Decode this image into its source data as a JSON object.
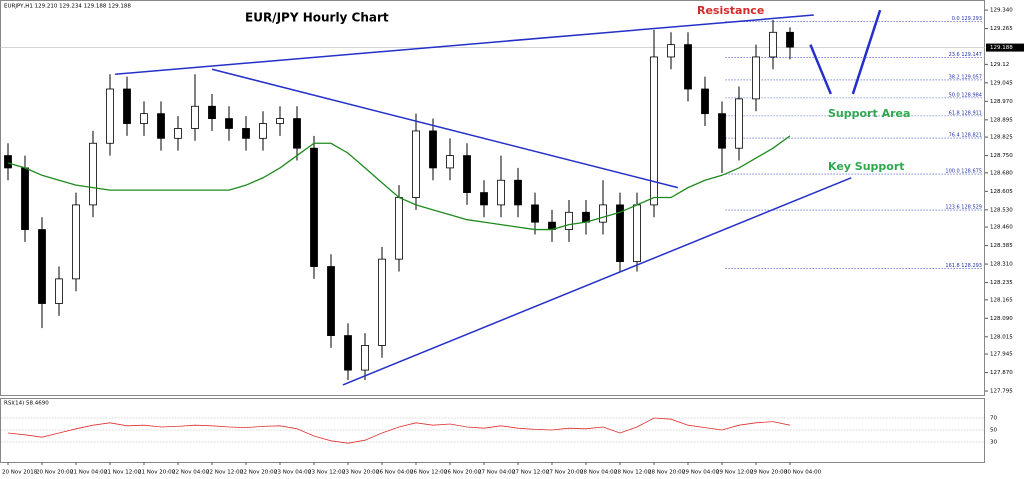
{
  "chart_data": {
    "type": "candlestick",
    "title": "EUR/JPY Hourly Chart",
    "info": "EURJPY,H1 129.210 129.234 129.188 129.188",
    "categories": [
      "20 Nov 2018",
      null,
      "20 Nov 20:00",
      null,
      "21 Nov 04:00",
      null,
      "21 Nov 12:00",
      null,
      "21 Nov 20:00",
      null,
      "22 Nov 04:00",
      null,
      "22 Nov 12:00",
      null,
      "22 Nov 20:00",
      null,
      "23 Nov 04:00",
      null,
      "23 Nov 12:00",
      null,
      "23 Nov 20:00",
      null,
      "26 Nov 04:00",
      null,
      "26 Nov 12:00",
      null,
      "26 Nov 20:00",
      null,
      "27 Nov 04:00",
      null,
      "27 Nov 12:00",
      null,
      "27 Nov 20:00",
      null,
      "28 Nov 04:00",
      null,
      "28 Nov 12:00",
      null,
      "28 Nov 20:00",
      null,
      "29 Nov 04:00",
      null,
      "29 Nov 12:00",
      null,
      "29 Nov 20:00",
      null,
      "30 Nov 04:00"
    ],
    "open": [
      128.75,
      128.7,
      128.45,
      128.15,
      128.25,
      128.55,
      128.8,
      129.02,
      128.88,
      128.92,
      128.82,
      128.86,
      128.95,
      128.9,
      128.86,
      128.82,
      128.88,
      128.9,
      128.78,
      128.3,
      128.02,
      127.88,
      127.98,
      128.33,
      128.58,
      128.85,
      128.7,
      128.75,
      128.6,
      128.55,
      128.65,
      128.55,
      128.48,
      128.45,
      128.52,
      128.48,
      128.55,
      128.32,
      128.55,
      129.15,
      129.2,
      129.02,
      128.92,
      128.78,
      128.98,
      129.15,
      129.25
    ],
    "high": [
      128.8,
      128.75,
      128.5,
      128.3,
      128.6,
      128.85,
      129.08,
      129.07,
      128.97,
      128.97,
      128.91,
      129.08,
      129.0,
      128.95,
      128.91,
      128.93,
      128.95,
      128.95,
      128.83,
      128.35,
      128.07,
      128.03,
      128.38,
      128.63,
      128.92,
      128.9,
      128.82,
      128.8,
      128.65,
      128.75,
      128.7,
      128.6,
      128.53,
      128.57,
      128.57,
      128.65,
      128.6,
      128.6,
      129.26,
      129.25,
      129.25,
      129.07,
      128.97,
      129.03,
      129.2,
      129.3,
      129.27
    ],
    "low": [
      128.65,
      128.4,
      128.05,
      128.1,
      128.2,
      128.5,
      128.75,
      128.83,
      128.83,
      128.77,
      128.77,
      128.81,
      128.85,
      128.81,
      128.77,
      128.77,
      128.83,
      128.73,
      128.25,
      127.97,
      127.84,
      127.84,
      127.93,
      128.28,
      128.53,
      128.65,
      128.65,
      128.55,
      128.5,
      128.5,
      128.5,
      128.43,
      128.4,
      128.4,
      128.43,
      128.43,
      128.28,
      128.28,
      128.5,
      129.1,
      128.97,
      128.87,
      128.68,
      128.73,
      128.93,
      129.1,
      129.14
    ],
    "close": [
      128.7,
      128.45,
      128.15,
      128.25,
      128.55,
      128.8,
      129.02,
      128.88,
      128.92,
      128.82,
      128.86,
      128.95,
      128.9,
      128.86,
      128.82,
      128.88,
      128.9,
      128.78,
      128.3,
      128.02,
      127.88,
      127.98,
      128.33,
      128.58,
      128.85,
      128.7,
      128.75,
      128.6,
      128.55,
      128.65,
      128.55,
      128.48,
      128.45,
      128.52,
      128.48,
      128.55,
      128.32,
      128.55,
      129.15,
      129.2,
      129.02,
      128.92,
      128.78,
      128.98,
      129.15,
      129.25,
      129.19
    ],
    "moving_average": {
      "color": "#1e8a1e",
      "values": [
        128.72,
        128.7,
        128.67,
        128.65,
        128.63,
        128.62,
        128.61,
        128.61,
        128.61,
        128.61,
        128.61,
        128.61,
        128.61,
        128.61,
        128.63,
        128.66,
        128.7,
        128.75,
        128.8,
        128.8,
        128.76,
        128.7,
        128.64,
        128.58,
        128.55,
        128.53,
        128.51,
        128.49,
        128.48,
        128.47,
        128.46,
        128.45,
        128.45,
        128.47,
        128.48,
        128.5,
        128.52,
        128.55,
        128.58,
        128.58,
        128.62,
        128.65,
        128.67,
        128.7,
        128.74,
        128.78,
        128.83
      ]
    },
    "ylim": [
      127.779,
      129.381
    ],
    "yticks": [
      {
        "value": 129.34,
        "label": "129.340"
      },
      129.265,
      129.12,
      129.045,
      {
        "value": 128.97,
        "label": "128.970"
      },
      128.895,
      128.825,
      {
        "value": 128.75,
        "label": "128.750"
      },
      {
        "value": 128.68,
        "label": "128.680"
      },
      128.605,
      {
        "value": 128.53,
        "label": "128.530"
      },
      {
        "value": 128.46,
        "label": "128.460"
      },
      128.385,
      {
        "value": 128.31,
        "label": "128.310"
      },
      128.235,
      128.165,
      {
        "value": 128.09,
        "label": "128.090"
      },
      128.015,
      127.945,
      {
        "value": 127.87,
        "label": "127.870"
      },
      127.795
    ],
    "current_price": 129.188,
    "trendlines": [
      {
        "color": "#2430c8",
        "points": [
          [
            6.3,
            129.08
          ],
          [
            47.4,
            129.32
          ]
        ]
      },
      {
        "color": "#2430c8",
        "points": [
          [
            12.0,
            129.1
          ],
          [
            39.4,
            128.62
          ]
        ]
      },
      {
        "color": "#2430c8",
        "points": [
          [
            19.7,
            127.82
          ],
          [
            49.6,
            128.66
          ]
        ]
      },
      {
        "color": "#2430c8",
        "points": [
          [
            47.2,
            129.2
          ],
          [
            48.4,
            129.0
          ]
        ]
      },
      {
        "color": "#2430c8",
        "points": [
          [
            49.7,
            129.0
          ],
          [
            51.3,
            129.34
          ]
        ]
      }
    ],
    "fibonacci": [
      {
        "label": "0.0 129.293",
        "value": 129.293
      },
      {
        "label": "23.6 129.147",
        "value": 129.147
      },
      {
        "label": "38.2 129.057",
        "value": 129.057
      },
      {
        "label": "50.0 128.984",
        "value": 128.984
      },
      {
        "label": "61.8 128.911",
        "value": 128.911
      },
      {
        "label": "76.4 128.821",
        "value": 128.821
      },
      {
        "label": "100.0 128.675",
        "value": 128.675
      },
      {
        "label": "123.6 128.529",
        "value": 128.529
      },
      {
        "label": "161.8 128.293",
        "value": 128.293
      }
    ],
    "fib_start": 42.2,
    "annotations": [
      {
        "text": "Resistance",
        "color": "#d42a2a"
      },
      {
        "text": "Support Area",
        "color": "#2fa84f"
      },
      {
        "text": "Key Support",
        "color": "#2fa84f"
      }
    ],
    "rsi": {
      "label": "RSI(14) 58.4690",
      "color": "#e03030",
      "ylim": [
        0,
        100
      ],
      "yticks": [
        30,
        50,
        70
      ],
      "values": [
        45,
        42,
        38,
        45,
        52,
        58,
        62,
        57,
        58,
        55,
        56,
        58,
        57,
        55,
        54,
        56,
        57,
        52,
        40,
        32,
        28,
        33,
        45,
        55,
        62,
        58,
        60,
        55,
        53,
        57,
        53,
        51,
        50,
        53,
        52,
        55,
        45,
        55,
        70,
        68,
        58,
        54,
        50,
        58,
        62,
        64,
        58
      ]
    }
  }
}
